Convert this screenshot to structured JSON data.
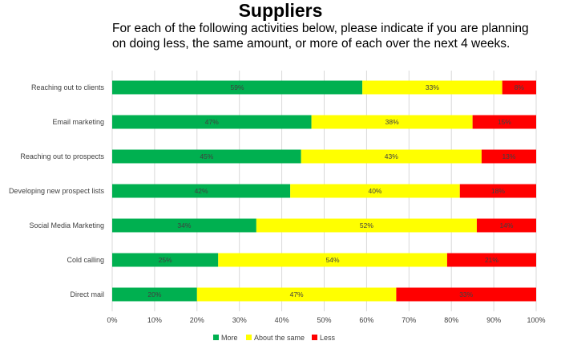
{
  "chart_data": {
    "type": "bar",
    "orientation": "horizontal",
    "stacked": true,
    "title": "Suppliers",
    "subtitle": "For each of the following activities below, please indicate if you are planning on doing less, the same amount, or more of each over the next 4 weeks.",
    "categories": [
      "Reaching out to clients",
      "Email marketing",
      "Reaching out to prospects",
      "Developing new prospect lists",
      "Social Media Marketing",
      "Cold calling",
      "Direct mail"
    ],
    "series": [
      {
        "name": "More",
        "color": "#00b050",
        "values": [
          59,
          47,
          45,
          42,
          34,
          25,
          20
        ]
      },
      {
        "name": "About the same",
        "color": "#ffff00",
        "values": [
          33,
          38,
          43,
          40,
          52,
          54,
          47
        ]
      },
      {
        "name": "Less",
        "color": "#ff0000",
        "values": [
          8,
          15,
          13,
          18,
          14,
          21,
          33
        ]
      }
    ],
    "value_labels": [
      [
        "59%",
        "47%",
        "45%",
        "42%",
        "34%",
        "25%",
        "20%"
      ],
      [
        "33%",
        "38%",
        "43%",
        "40%",
        "52%",
        "54%",
        "47%"
      ],
      [
        "8%",
        "15%",
        "13%",
        "18%",
        "14%",
        "21%",
        "33%"
      ]
    ],
    "xlim": [
      0,
      100
    ],
    "x_ticks": [
      "0%",
      "10%",
      "20%",
      "30%",
      "40%",
      "50%",
      "60%",
      "70%",
      "80%",
      "90%",
      "100%"
    ],
    "grid": true,
    "legend_position": "bottom"
  }
}
